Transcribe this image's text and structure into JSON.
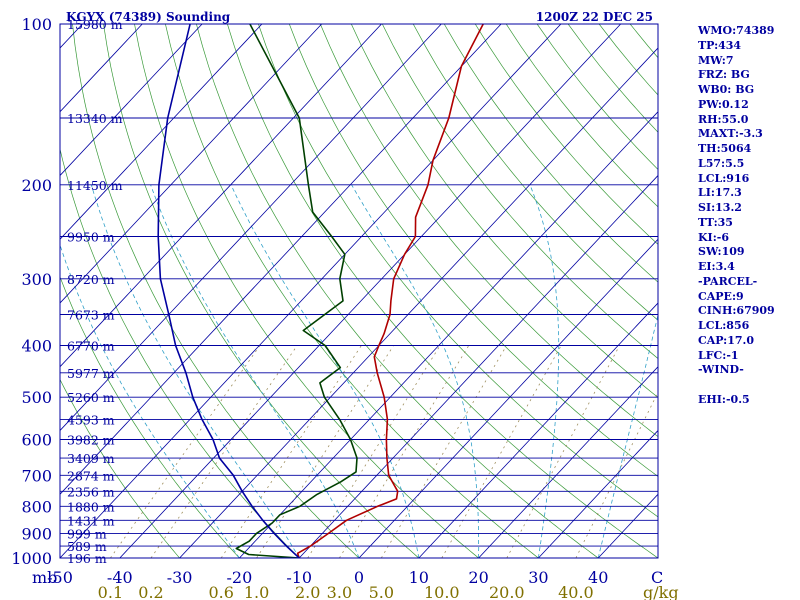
{
  "chart_data": {
    "type": "line",
    "title": "KGYX (74389) Sounding",
    "valid_time": "1200Z 22 DEC 25",
    "pressure_axis_label": "mb",
    "pressure_ticks": [
      100,
      200,
      300,
      400,
      500,
      600,
      700,
      800,
      900,
      1000
    ],
    "pressure_range": [
      100,
      1000
    ],
    "temperature_ticks": [
      -50,
      -40,
      -30,
      -20,
      -10,
      0,
      10,
      20,
      30,
      40
    ],
    "temperature_range_at_surface": [
      -50,
      50
    ],
    "temperature_axis_end_label": "C",
    "mixing_ratio_ticks": [
      "0.1",
      "0.2",
      "0.6",
      "1.0",
      "2.0",
      "3.0",
      "5.0",
      "10.0",
      "20.0",
      "40.0"
    ],
    "mixing_ratio_units": "g/kg",
    "height_labels": [
      {
        "p": 100,
        "label": "15980 m"
      },
      {
        "p": 150,
        "label": "13340 m"
      },
      {
        "p": 200,
        "label": "11450 m"
      },
      {
        "p": 250,
        "label": "9950 m"
      },
      {
        "p": 300,
        "label": "8720 m"
      },
      {
        "p": 350,
        "label": "7673 m"
      },
      {
        "p": 400,
        "label": "6770 m"
      },
      {
        "p": 450,
        "label": "5977 m"
      },
      {
        "p": 500,
        "label": "5260 m"
      },
      {
        "p": 550,
        "label": "4593 m"
      },
      {
        "p": 600,
        "label": "3982 m"
      },
      {
        "p": 650,
        "label": "3409 m"
      },
      {
        "p": 700,
        "label": "2874 m"
      },
      {
        "p": 750,
        "label": "2356 m"
      },
      {
        "p": 800,
        "label": "1880 m"
      },
      {
        "p": 850,
        "label": "1431 m"
      },
      {
        "p": 900,
        "label": "999 m"
      },
      {
        "p": 950,
        "label": "589 m"
      },
      {
        "p": 1000,
        "label": "196 m"
      }
    ],
    "series": [
      {
        "name": "Temperature",
        "color": "#b00000",
        "points": [
          {
            "p": 1000,
            "t": -10
          },
          {
            "p": 980,
            "t": -11
          },
          {
            "p": 950,
            "t": -10
          },
          {
            "p": 900,
            "t": -9
          },
          {
            "p": 850,
            "t": -8
          },
          {
            "p": 800,
            "t": -5
          },
          {
            "p": 775,
            "t": -3
          },
          {
            "p": 750,
            "t": -4
          },
          {
            "p": 700,
            "t": -8
          },
          {
            "p": 650,
            "t": -11
          },
          {
            "p": 600,
            "t": -14
          },
          {
            "p": 550,
            "t": -17
          },
          {
            "p": 500,
            "t": -21
          },
          {
            "p": 450,
            "t": -26
          },
          {
            "p": 420,
            "t": -29
          },
          {
            "p": 400,
            "t": -30
          },
          {
            "p": 380,
            "t": -31
          },
          {
            "p": 350,
            "t": -33
          },
          {
            "p": 330,
            "t": -35
          },
          {
            "p": 300,
            "t": -38
          },
          {
            "p": 270,
            "t": -40
          },
          {
            "p": 250,
            "t": -41
          },
          {
            "p": 230,
            "t": -44
          },
          {
            "p": 200,
            "t": -47
          },
          {
            "p": 180,
            "t": -50
          },
          {
            "p": 150,
            "t": -54
          },
          {
            "p": 120,
            "t": -60
          },
          {
            "p": 100,
            "t": -63
          }
        ]
      },
      {
        "name": "Dewpoint",
        "color": "#004000",
        "points": [
          {
            "p": 1000,
            "t": -10
          },
          {
            "p": 985,
            "t": -19
          },
          {
            "p": 960,
            "t": -22
          },
          {
            "p": 930,
            "t": -21
          },
          {
            "p": 900,
            "t": -21
          },
          {
            "p": 860,
            "t": -20
          },
          {
            "p": 830,
            "t": -20
          },
          {
            "p": 800,
            "t": -18
          },
          {
            "p": 760,
            "t": -17
          },
          {
            "p": 720,
            "t": -15
          },
          {
            "p": 690,
            "t": -14
          },
          {
            "p": 650,
            "t": -16
          },
          {
            "p": 600,
            "t": -20
          },
          {
            "p": 550,
            "t": -25
          },
          {
            "p": 500,
            "t": -31
          },
          {
            "p": 470,
            "t": -34
          },
          {
            "p": 440,
            "t": -33
          },
          {
            "p": 400,
            "t": -39
          },
          {
            "p": 375,
            "t": -45
          },
          {
            "p": 330,
            "t": -43
          },
          {
            "p": 300,
            "t": -47
          },
          {
            "p": 270,
            "t": -50
          },
          {
            "p": 250,
            "t": -55
          },
          {
            "p": 225,
            "t": -62
          },
          {
            "p": 200,
            "t": -67
          },
          {
            "p": 150,
            "t": -79
          },
          {
            "p": 100,
            "t": -102
          }
        ]
      },
      {
        "name": "Parcel",
        "color": "#0000a0",
        "points": [
          {
            "p": 1000,
            "t": -10
          },
          {
            "p": 950,
            "t": -14
          },
          {
            "p": 900,
            "t": -18
          },
          {
            "p": 850,
            "t": -22
          },
          {
            "p": 800,
            "t": -26
          },
          {
            "p": 750,
            "t": -30
          },
          {
            "p": 700,
            "t": -34
          },
          {
            "p": 650,
            "t": -39
          },
          {
            "p": 600,
            "t": -43
          },
          {
            "p": 550,
            "t": -48
          },
          {
            "p": 500,
            "t": -53
          },
          {
            "p": 450,
            "t": -58
          },
          {
            "p": 400,
            "t": -64
          },
          {
            "p": 350,
            "t": -70
          },
          {
            "p": 300,
            "t": -77
          },
          {
            "p": 250,
            "t": -84
          },
          {
            "p": 200,
            "t": -92
          },
          {
            "p": 150,
            "t": -101
          },
          {
            "p": 100,
            "t": -112
          }
        ]
      }
    ]
  },
  "indices": [
    "WMO:74389",
    "TP:434",
    "MW:7",
    "FRZ: BG",
    "WB0: BG",
    "PW:0.12",
    "RH:55.0",
    "MAXT:-3.3",
    "TH:5064",
    "L57:5.5",
    "LCL:916",
    "LI:17.3",
    "SI:13.2",
    "TT:35",
    "KI:-6",
    "SW:109",
    "EI:3.4",
    "-PARCEL-",
    "CAPE:9",
    "CINH:67909",
    "LCL:856",
    "CAP:17.0",
    "LFC:-1",
    "-WIND-",
    "",
    "EHI:-0.5"
  ]
}
